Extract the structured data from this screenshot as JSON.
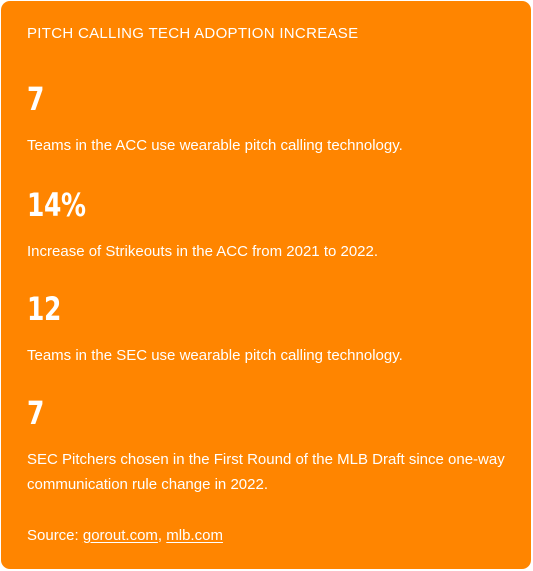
{
  "card": {
    "title": "PITCH CALLING TECH ADOPTION INCREASE",
    "stats": [
      {
        "value": "7",
        "description": "Teams in the ACC use wearable pitch calling technology."
      },
      {
        "value": "14%",
        "description": "Increase of Strikeouts in the ACC from 2021 to 2022."
      },
      {
        "value": "12",
        "description": "Teams in the SEC use wearable pitch calling technology."
      },
      {
        "value": "7",
        "description": "SEC Pitchers chosen in the First Round of the MLB Draft since one-way communication rule change in 2022."
      }
    ],
    "source": {
      "label": "Source: ",
      "link1": "gorout.com",
      "separator": ", ",
      "link2": "mlb.com"
    }
  },
  "colors": {
    "background": "#ff8500",
    "text": "#ffffff"
  }
}
